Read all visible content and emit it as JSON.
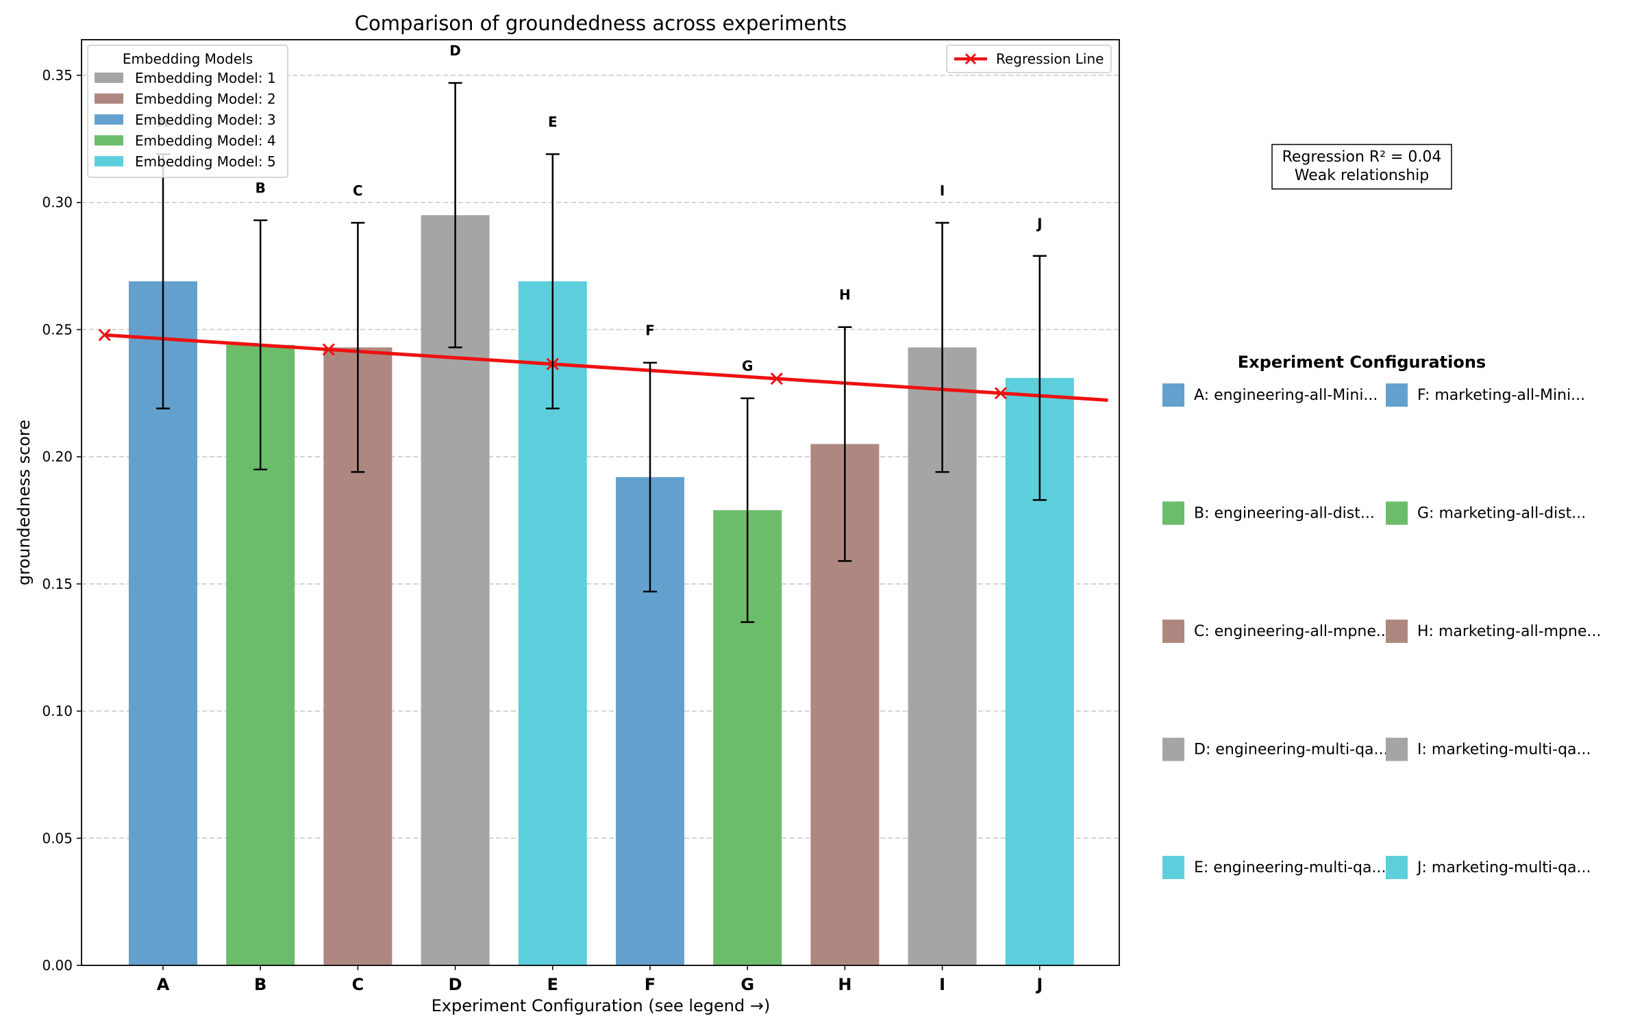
{
  "chart_data": {
    "type": "bar",
    "title": "Comparison of groundedness across experiments",
    "xlabel": "Experiment Configuration (see legend →)",
    "ylabel": "groundedness score",
    "ylim": [
      0,
      0.364
    ],
    "yticks": [
      0.0,
      0.05,
      0.1,
      0.15,
      0.2,
      0.25,
      0.3,
      0.35
    ],
    "grid": "horizontal dashed",
    "categories": [
      "A",
      "B",
      "C",
      "D",
      "E",
      "F",
      "G",
      "H",
      "I",
      "J"
    ],
    "values": [
      0.269,
      0.244,
      0.243,
      0.295,
      0.269,
      0.192,
      0.179,
      0.205,
      0.243,
      0.231
    ],
    "error": [
      0.05,
      0.049,
      0.049,
      0.052,
      0.05,
      0.045,
      0.044,
      0.046,
      0.049,
      0.048
    ],
    "model_index": [
      3,
      4,
      2,
      1,
      5,
      3,
      4,
      2,
      1,
      5
    ],
    "bar_labels": [
      "A",
      "B",
      "C",
      "D",
      "E",
      "F",
      "G",
      "H",
      "I",
      "J"
    ],
    "model_colors": {
      "1": "#a5a5a5",
      "2": "#ae8880",
      "3": "#64a0cd",
      "4": "#6bbd6b",
      "5": "#5dcfdc"
    },
    "model_legend": {
      "title": "Embedding Models",
      "placement": "top-left",
      "items": [
        {
          "label": "Embedding Model: 1",
          "model": "1"
        },
        {
          "label": "Embedding Model: 2",
          "model": "2"
        },
        {
          "label": "Embedding Model: 3",
          "model": "3"
        },
        {
          "label": "Embedding Model: 4",
          "model": "4"
        },
        {
          "label": "Embedding Model: 5",
          "model": "5"
        }
      ]
    },
    "regression": {
      "label": "Regression Line",
      "placement": "top-right",
      "color": "#ee1111",
      "x_start": -0.6,
      "y_at_start": 0.2479,
      "slope": -0.00249,
      "marker_x": [
        -0.6,
        1.7,
        4.0,
        6.3,
        8.6
      ],
      "annotation_line1": "Regression R² = 0.04",
      "annotation_line2": "Weak relationship"
    },
    "config_legend": {
      "title": "Experiment Configurations",
      "items": [
        {
          "label": "A: engineering-all-Mini...",
          "model": "3"
        },
        {
          "label": "F: marketing-all-Mini...",
          "model": "3"
        },
        {
          "label": "B: engineering-all-dist...",
          "model": "4"
        },
        {
          "label": "G: marketing-all-dist...",
          "model": "4"
        },
        {
          "label": "C: engineering-all-mpne...",
          "model": "2"
        },
        {
          "label": "H: marketing-all-mpne...",
          "model": "2"
        },
        {
          "label": "D: engineering-multi-qa...",
          "model": "1"
        },
        {
          "label": "I: marketing-multi-qa...",
          "model": "1"
        },
        {
          "label": "E: engineering-multi-qa...",
          "model": "5"
        },
        {
          "label": "J: marketing-multi-qa...",
          "model": "5"
        }
      ]
    }
  }
}
